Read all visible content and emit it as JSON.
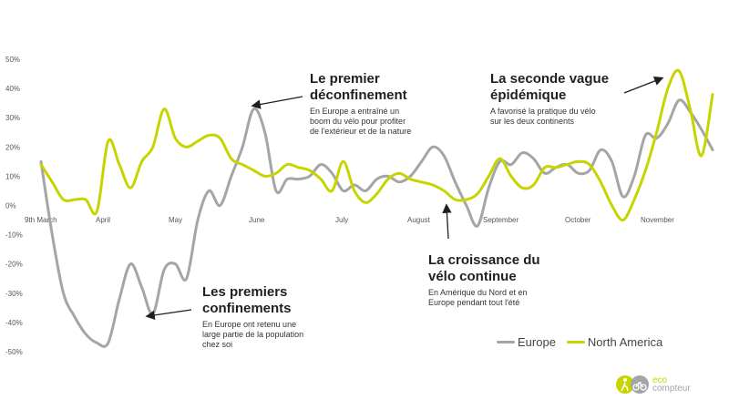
{
  "chart_data": {
    "type": "line",
    "x_labels": [
      "9th March",
      "April",
      "May",
      "June",
      "July",
      "August",
      "September",
      "October",
      "November"
    ],
    "y_ticks": [
      "50%",
      "40%",
      "30%",
      "20%",
      "10%",
      "0%",
      "-10%",
      "-20%",
      "-30%",
      "-40%",
      "-50%"
    ],
    "ylim": [
      -50,
      50
    ],
    "grid": false,
    "legend_position": "bottom-right",
    "series": [
      {
        "name": "Europe",
        "color": "#a5a5a5",
        "values": [
          15,
          -10,
          -30,
          -38,
          -44,
          -47,
          -47,
          -32,
          -20,
          -28,
          -37,
          -22,
          -20,
          -25,
          -5,
          5,
          0,
          10,
          20,
          33,
          25,
          5,
          9,
          9,
          10,
          14,
          11,
          5,
          7,
          5,
          9,
          10,
          8,
          10,
          15,
          20,
          17,
          8,
          0,
          -7,
          6,
          15,
          14,
          18,
          16,
          11,
          13,
          14,
          11,
          12,
          19,
          15,
          3,
          10,
          24,
          23,
          28,
          36,
          32,
          26,
          19
        ]
      },
      {
        "name": "North America",
        "color": "#c8d400",
        "values": [
          14,
          8,
          2,
          2,
          2,
          -2,
          22,
          14,
          6,
          15,
          20,
          33,
          23,
          20,
          22,
          24,
          23,
          16,
          14,
          12,
          10,
          11,
          14,
          13,
          12,
          9,
          5,
          15,
          5,
          1,
          4,
          9,
          11,
          9,
          8,
          7,
          5,
          2,
          2,
          4,
          10,
          16,
          10,
          6,
          7,
          13,
          13,
          14,
          15,
          14,
          8,
          0,
          -5,
          2,
          12,
          25,
          40,
          46,
          33,
          17,
          38
        ]
      }
    ],
    "annotations": [
      {
        "title": "Les premiers\nconfinements",
        "body": "En Europe ont retenu une\nlarge partie de la population\nchez soi"
      },
      {
        "title": "Le premier\ndéconfinement",
        "body": "En Europe a entraîné un\nboom du vélo pour profiter\nde l'extérieur et de la nature"
      },
      {
        "title": "La croissance du\nvélo continue",
        "body": "En Amérique du Nord et en\nEurope pendant tout l'été"
      },
      {
        "title": "La seconde vague\népidémique",
        "body": "A favorisé la pratique du vélo\nsur les deux continents"
      }
    ]
  },
  "legend": {
    "items": [
      {
        "label": "Europe",
        "color": "#a5a5a5"
      },
      {
        "label": "North America",
        "color": "#c8d400"
      }
    ]
  },
  "logo": {
    "line1": "eco",
    "line2": "compteur",
    "brand_color": "#c8d400",
    "grey_color": "#a5a5a5"
  }
}
